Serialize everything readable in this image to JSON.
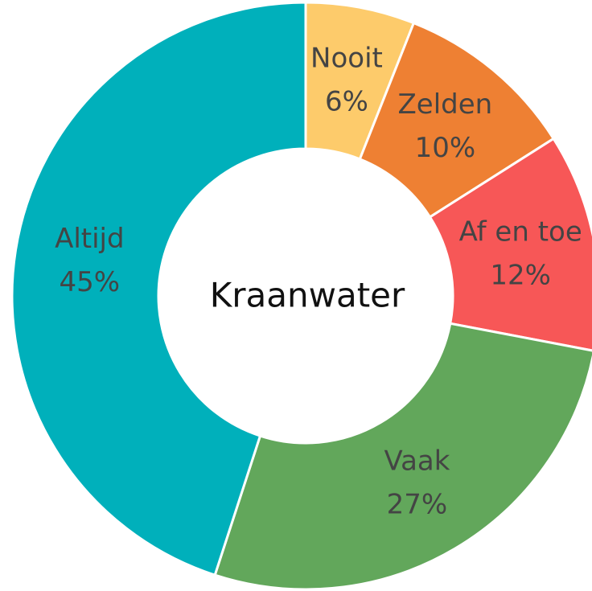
{
  "chart_data": {
    "type": "donut",
    "title": "Kraanwater",
    "categories": [
      "Nooit",
      "Zelden",
      "Af en toe",
      "Vaak",
      "Altijd"
    ],
    "values": [
      6,
      10,
      12,
      27,
      45
    ],
    "value_labels": [
      "6%",
      "10%",
      "12%",
      "27%",
      "45%"
    ],
    "colors": [
      "#fdcb6b",
      "#ee8033",
      "#f75757",
      "#62a75b",
      "#00b0bb"
    ]
  }
}
